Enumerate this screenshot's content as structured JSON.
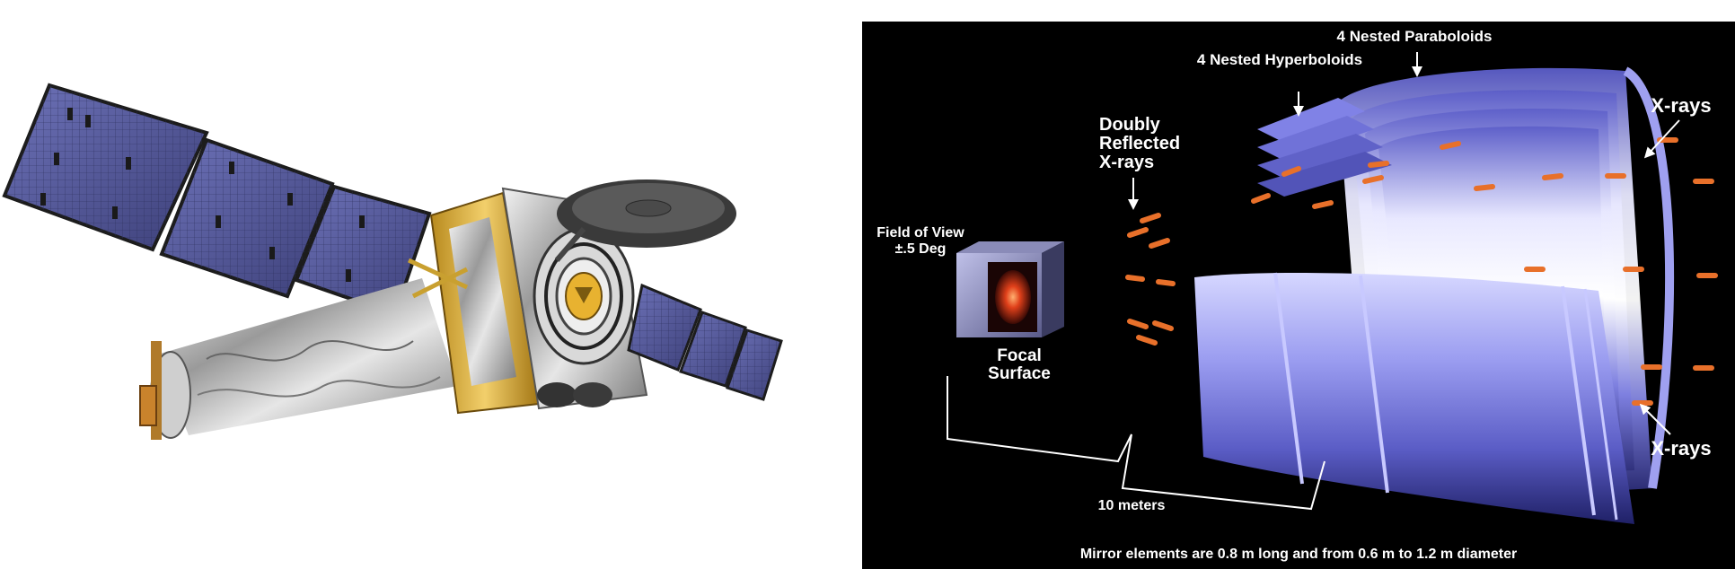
{
  "diagram": {
    "labels": {
      "paraboloids": "4 Nested Paraboloids",
      "hyperboloids": "4 Nested Hyperboloids",
      "doubly_line1": "Doubly",
      "doubly_line2": "Reflected",
      "doubly_line3": "X-rays",
      "xrays_top": "X-rays",
      "xrays_bottom": "X-rays",
      "fov_line1": "Field of View",
      "fov_line2": "±.5 Deg",
      "focal_line1": "Focal",
      "focal_line2": "Surface",
      "distance": "10 meters",
      "caption": "Mirror elements are 0.8 m long and from 0.6 m to 1.2 m diameter"
    },
    "colors": {
      "background": "#000000",
      "mirror": "#7d7fe0",
      "ray": "#e8702a",
      "text": "#ffffff"
    }
  }
}
